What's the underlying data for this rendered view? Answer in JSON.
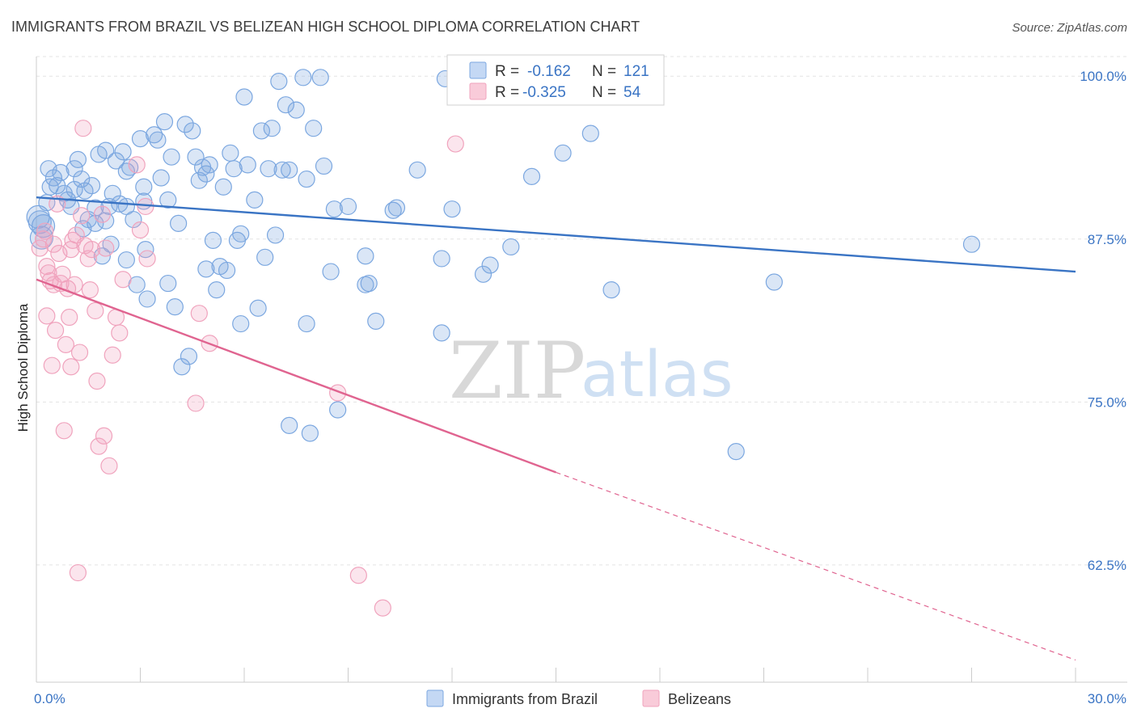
{
  "chart_data": {
    "type": "scatter",
    "title": "IMMIGRANTS FROM BRAZIL VS BELIZEAN HIGH SCHOOL DIPLOMA CORRELATION CHART",
    "source": "Source: ZipAtlas.com",
    "ylabel": "High School Diploma",
    "xlim": [
      0,
      30
    ],
    "ylim": [
      53.5,
      101.5
    ],
    "x_tick_labels": [
      "0.0%",
      "30.0%"
    ],
    "y_ticks": [
      {
        "value": 100,
        "label": "100.0%"
      },
      {
        "value": 87.5,
        "label": "87.5%"
      },
      {
        "value": 75,
        "label": "75.0%"
      },
      {
        "value": 62.5,
        "label": "62.5%"
      }
    ],
    "grid": true,
    "watermark": {
      "part1": "ZIP",
      "part2": "atlas"
    },
    "legend": {
      "position": "top-center",
      "rows": [
        {
          "r_label": "R =",
          "r_value": "-0.162",
          "n_label": "N =",
          "n_value": "121"
        },
        {
          "r_label": "R =",
          "r_value": "-0.325",
          "n_label": "N =",
          "n_value": "54"
        }
      ]
    },
    "series": [
      {
        "name": "Immigrants from Brazil",
        "color": "#7ba7e0",
        "line_color": "#3a74c4",
        "trend": {
          "x0": 0,
          "y0": 90.7,
          "x1": 30,
          "y1": 85.0
        },
        "points": [
          [
            0.1,
            88.8
          ],
          [
            0.2,
            88.5
          ],
          [
            0.4,
            91.5
          ],
          [
            0.5,
            92.2
          ],
          [
            0.6,
            91.6
          ],
          [
            0.7,
            92.6
          ],
          [
            0.8,
            91.0
          ],
          [
            0.9,
            90.5
          ],
          [
            1.0,
            90.0
          ],
          [
            1.1,
            92.9
          ],
          [
            1.1,
            91.3
          ],
          [
            1.2,
            93.6
          ],
          [
            1.3,
            92.1
          ],
          [
            1.4,
            91.2
          ],
          [
            1.5,
            89.0
          ],
          [
            1.6,
            91.6
          ],
          [
            1.7,
            89.9
          ],
          [
            1.7,
            88.7
          ],
          [
            1.8,
            94.0
          ],
          [
            1.9,
            86.2
          ],
          [
            2.0,
            88.9
          ],
          [
            2.0,
            94.3
          ],
          [
            2.1,
            90.0
          ],
          [
            2.2,
            91.0
          ],
          [
            2.3,
            93.5
          ],
          [
            2.4,
            90.2
          ],
          [
            2.5,
            94.2
          ],
          [
            2.6,
            90.0
          ],
          [
            2.6,
            92.7
          ],
          [
            2.6,
            85.9
          ],
          [
            2.7,
            93.0
          ],
          [
            2.8,
            89.0
          ],
          [
            2.9,
            84.0
          ],
          [
            3.0,
            95.2
          ],
          [
            3.1,
            91.5
          ],
          [
            3.1,
            90.4
          ],
          [
            3.2,
            82.9
          ],
          [
            3.4,
            95.5
          ],
          [
            3.5,
            95.1
          ],
          [
            3.6,
            92.2
          ],
          [
            3.7,
            96.5
          ],
          [
            3.8,
            90.5
          ],
          [
            3.8,
            84.1
          ],
          [
            3.9,
            93.8
          ],
          [
            4.0,
            82.3
          ],
          [
            4.1,
            88.7
          ],
          [
            4.2,
            77.7
          ],
          [
            4.3,
            96.3
          ],
          [
            4.4,
            78.5
          ],
          [
            4.5,
            95.8
          ],
          [
            4.6,
            93.8
          ],
          [
            4.7,
            92.0
          ],
          [
            4.8,
            93.0
          ],
          [
            4.9,
            92.5
          ],
          [
            4.9,
            85.2
          ],
          [
            5.0,
            93.2
          ],
          [
            5.1,
            87.4
          ],
          [
            5.2,
            83.6
          ],
          [
            5.3,
            85.4
          ],
          [
            5.4,
            91.5
          ],
          [
            5.5,
            85.1
          ],
          [
            5.6,
            94.1
          ],
          [
            5.7,
            92.9
          ],
          [
            5.8,
            87.4
          ],
          [
            5.9,
            87.9
          ],
          [
            5.9,
            81.0
          ],
          [
            6.0,
            98.4
          ],
          [
            6.1,
            93.2
          ],
          [
            6.3,
            90.5
          ],
          [
            6.4,
            82.2
          ],
          [
            6.5,
            95.8
          ],
          [
            6.6,
            86.1
          ],
          [
            6.7,
            92.9
          ],
          [
            6.8,
            96.0
          ],
          [
            6.9,
            87.8
          ],
          [
            7.0,
            99.6
          ],
          [
            7.1,
            92.8
          ],
          [
            7.2,
            97.8
          ],
          [
            7.3,
            92.8
          ],
          [
            7.3,
            73.2
          ],
          [
            7.5,
            97.4
          ],
          [
            7.7,
            99.9
          ],
          [
            7.8,
            92.1
          ],
          [
            7.8,
            81.0
          ],
          [
            7.9,
            72.6
          ],
          [
            8.0,
            96.0
          ],
          [
            8.2,
            99.9
          ],
          [
            8.3,
            93.1
          ],
          [
            8.5,
            85.0
          ],
          [
            8.6,
            89.8
          ],
          [
            8.7,
            74.4
          ],
          [
            9.0,
            90.0
          ],
          [
            9.5,
            86.2
          ],
          [
            9.6,
            84.1
          ],
          [
            9.8,
            81.2
          ],
          [
            10.3,
            89.7
          ],
          [
            10.4,
            89.9
          ],
          [
            11.0,
            92.8
          ],
          [
            11.7,
            86.0
          ],
          [
            11.7,
            80.3
          ],
          [
            11.8,
            99.8
          ],
          [
            12.0,
            89.8
          ],
          [
            12.9,
            84.8
          ],
          [
            13.1,
            85.5
          ],
          [
            13.7,
            86.9
          ],
          [
            14.3,
            92.3
          ],
          [
            15.2,
            94.1
          ],
          [
            16.0,
            95.6
          ],
          [
            16.3,
            100.0
          ],
          [
            16.6,
            83.6
          ],
          [
            20.2,
            71.2
          ],
          [
            21.3,
            84.2
          ],
          [
            27.0,
            87.1
          ],
          [
            0.05,
            89.2
          ],
          [
            0.15,
            87.6
          ],
          [
            0.3,
            90.3
          ],
          [
            0.35,
            92.9
          ],
          [
            1.35,
            88.3
          ],
          [
            2.15,
            87.1
          ],
          [
            3.15,
            86.7
          ],
          [
            9.5,
            84.0
          ]
        ]
      },
      {
        "name": "Belizeans",
        "color": "#f0a3bd",
        "line_color": "#e06490",
        "trend": {
          "x0": 0,
          "y0": 84.4,
          "x1": 15.0,
          "y1": 69.6,
          "dash_x1": 30,
          "dash_y1": 55.2
        },
        "points": [
          [
            0.1,
            86.8
          ],
          [
            0.2,
            87.5
          ],
          [
            0.3,
            85.4
          ],
          [
            0.3,
            81.6
          ],
          [
            0.35,
            84.9
          ],
          [
            0.4,
            84.3
          ],
          [
            0.45,
            77.8
          ],
          [
            0.5,
            87.1
          ],
          [
            0.5,
            84.0
          ],
          [
            0.55,
            80.5
          ],
          [
            0.6,
            90.2
          ],
          [
            0.65,
            86.4
          ],
          [
            0.7,
            84.1
          ],
          [
            0.75,
            84.8
          ],
          [
            0.8,
            72.8
          ],
          [
            0.85,
            79.4
          ],
          [
            0.9,
            83.7
          ],
          [
            0.95,
            81.5
          ],
          [
            1.0,
            86.7
          ],
          [
            1.0,
            77.7
          ],
          [
            1.05,
            87.4
          ],
          [
            1.1,
            84.0
          ],
          [
            1.15,
            87.8
          ],
          [
            1.2,
            61.9
          ],
          [
            1.25,
            78.8
          ],
          [
            1.3,
            89.3
          ],
          [
            1.35,
            96.0
          ],
          [
            1.4,
            87.0
          ],
          [
            1.5,
            86.0
          ],
          [
            1.55,
            83.6
          ],
          [
            1.6,
            86.7
          ],
          [
            1.7,
            82.0
          ],
          [
            1.75,
            76.6
          ],
          [
            1.8,
            71.6
          ],
          [
            1.9,
            89.4
          ],
          [
            1.95,
            72.4
          ],
          [
            2.0,
            86.8
          ],
          [
            2.1,
            70.1
          ],
          [
            2.2,
            78.6
          ],
          [
            2.3,
            81.5
          ],
          [
            2.4,
            80.3
          ],
          [
            2.5,
            84.4
          ],
          [
            2.9,
            93.2
          ],
          [
            3.0,
            88.2
          ],
          [
            3.15,
            90.0
          ],
          [
            3.2,
            86.0
          ],
          [
            4.6,
            74.9
          ],
          [
            4.7,
            81.8
          ],
          [
            5.0,
            79.5
          ],
          [
            8.7,
            75.7
          ],
          [
            9.3,
            61.7
          ],
          [
            10.0,
            59.2
          ],
          [
            12.1,
            94.8
          ],
          [
            0.25,
            88.1
          ]
        ]
      }
    ]
  }
}
